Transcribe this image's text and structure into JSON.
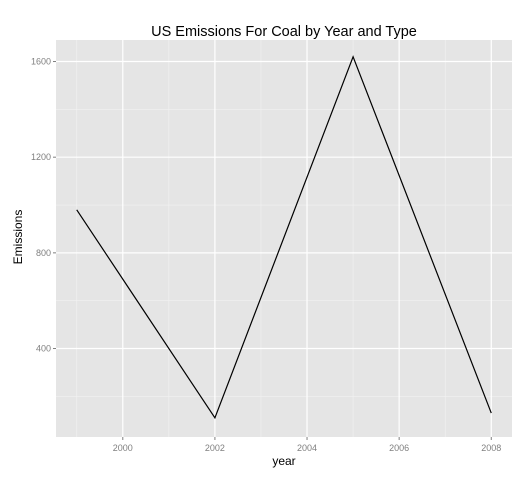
{
  "chart_data": {
    "type": "line",
    "title": "US Emissions For Coal by Year and Type",
    "xlabel": "year",
    "ylabel": "Emissions",
    "x": [
      1999,
      2002,
      2005,
      2008
    ],
    "series": [
      {
        "values": [
          980,
          110,
          1620,
          130
        ]
      }
    ],
    "xlim": [
      1998.55,
      2008.45
    ],
    "ylim": [
      30,
      1690
    ],
    "x_ticks": [
      2000,
      2002,
      2004,
      2006,
      2008
    ],
    "y_ticks": [
      400,
      800,
      1200,
      1600
    ],
    "grid": true,
    "legend": "none",
    "colors": {
      "panel": "#e5e5e5",
      "grid_major": "#ffffff",
      "grid_minor": "#f2f2f2",
      "line": "#000000",
      "tick_text": "#7f7f7f",
      "label_text": "#000000"
    }
  }
}
